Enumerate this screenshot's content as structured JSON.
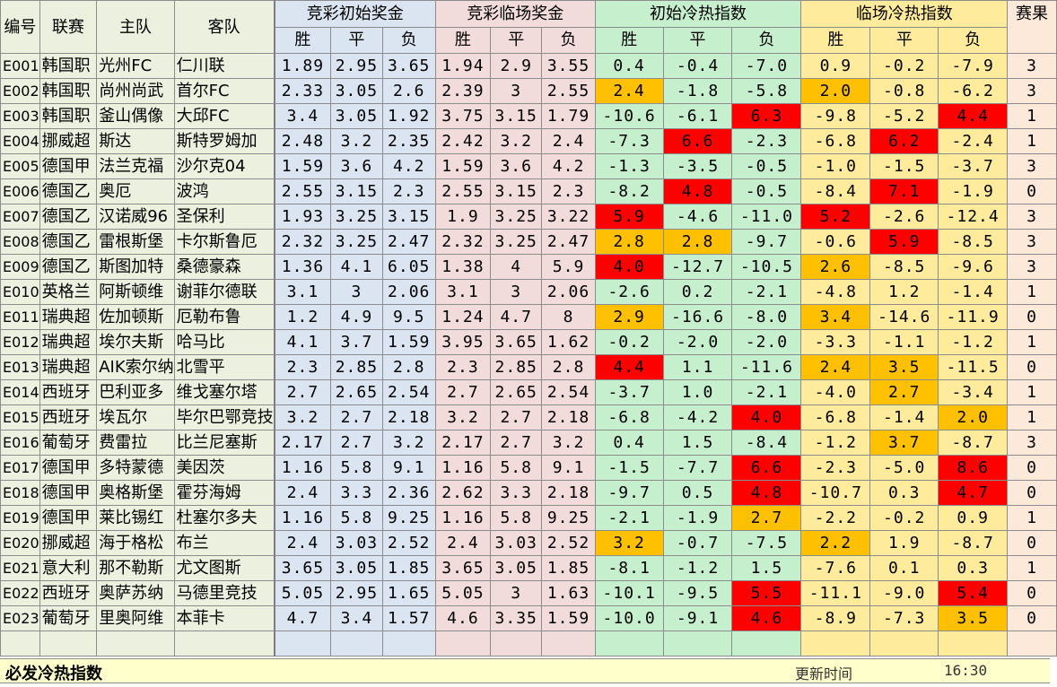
{
  "headers": {
    "id": "编号",
    "league": "联赛",
    "home": "主队",
    "away": "客队",
    "init_odds": "竞彩初始奖金",
    "live_odds": "竞彩临场奖金",
    "init_index": "初始冷热指数",
    "live_index": "临场冷热指数",
    "result": "赛果",
    "win": "胜",
    "draw": "平",
    "lose": "负"
  },
  "rows": [
    {
      "id": "E001",
      "league": "韩国职",
      "home": "光州FC",
      "away": "仁川联",
      "i1": "1.89",
      "i2": "2.95",
      "i3": "3.65",
      "l1": "1.94",
      "l2": "2.9",
      "l3": "3.55",
      "x1": "0.4",
      "x2": "-0.4",
      "x3": "-7.0",
      "y1": "0.9",
      "y2": "-0.2",
      "y3": "-7.9",
      "res": "3",
      "hx1": "",
      "hx2": "",
      "hx3": "",
      "hy1": "",
      "hy2": "",
      "hy3": ""
    },
    {
      "id": "E002",
      "league": "韩国职",
      "home": "尚州尚武",
      "away": "首尔FC",
      "i1": "2.33",
      "i2": "3.05",
      "i3": "2.6",
      "l1": "2.39",
      "l2": "3",
      "l3": "2.55",
      "x1": "2.4",
      "x2": "-1.8",
      "x3": "-5.8",
      "y1": "2.0",
      "y2": "-0.8",
      "y3": "-6.2",
      "res": "3",
      "hx1": "orange",
      "hx2": "",
      "hx3": "",
      "hy1": "orange",
      "hy2": "",
      "hy3": ""
    },
    {
      "id": "E003",
      "league": "韩国职",
      "home": "釜山偶像",
      "away": "大邱FC",
      "i1": "3.4",
      "i2": "3.05",
      "i3": "1.92",
      "l1": "3.75",
      "l2": "3.15",
      "l3": "1.79",
      "x1": "-10.6",
      "x2": "-6.1",
      "x3": "6.3",
      "y1": "-9.8",
      "y2": "-5.2",
      "y3": "4.4",
      "res": "1",
      "hx1": "",
      "hx2": "",
      "hx3": "red",
      "hy1": "",
      "hy2": "",
      "hy3": "red"
    },
    {
      "id": "E004",
      "league": "挪威超",
      "home": "斯达",
      "away": "斯特罗姆加",
      "i1": "2.48",
      "i2": "3.2",
      "i3": "2.35",
      "l1": "2.42",
      "l2": "3.2",
      "l3": "2.4",
      "x1": "-7.3",
      "x2": "6.6",
      "x3": "-2.3",
      "y1": "-6.8",
      "y2": "6.2",
      "y3": "-2.4",
      "res": "1",
      "hx1": "",
      "hx2": "red",
      "hx3": "",
      "hy1": "",
      "hy2": "red",
      "hy3": ""
    },
    {
      "id": "E005",
      "league": "德国甲",
      "home": "法兰克福",
      "away": "沙尔克04",
      "i1": "1.59",
      "i2": "3.6",
      "i3": "4.2",
      "l1": "1.59",
      "l2": "3.6",
      "l3": "4.2",
      "x1": "-1.3",
      "x2": "-3.5",
      "x3": "-0.5",
      "y1": "-1.0",
      "y2": "-1.5",
      "y3": "-3.7",
      "res": "3",
      "hx1": "",
      "hx2": "",
      "hx3": "",
      "hy1": "",
      "hy2": "",
      "hy3": ""
    },
    {
      "id": "E006",
      "league": "德国乙",
      "home": "奥厄",
      "away": "波鸿",
      "i1": "2.55",
      "i2": "3.15",
      "i3": "2.3",
      "l1": "2.55",
      "l2": "3.15",
      "l3": "2.3",
      "x1": "-8.2",
      "x2": "4.8",
      "x3": "-0.5",
      "y1": "-8.4",
      "y2": "7.1",
      "y3": "-1.9",
      "res": "0",
      "hx1": "",
      "hx2": "red",
      "hx3": "",
      "hy1": "",
      "hy2": "red",
      "hy3": ""
    },
    {
      "id": "E007",
      "league": "德国乙",
      "home": "汉诺威96",
      "away": "圣保利",
      "i1": "1.93",
      "i2": "3.25",
      "i3": "3.15",
      "l1": "1.9",
      "l2": "3.25",
      "l3": "3.22",
      "x1": "5.9",
      "x2": "-4.6",
      "x3": "-11.0",
      "y1": "5.2",
      "y2": "-2.6",
      "y3": "-12.4",
      "res": "3",
      "hx1": "red",
      "hx2": "",
      "hx3": "",
      "hy1": "red",
      "hy2": "",
      "hy3": ""
    },
    {
      "id": "E008",
      "league": "德国乙",
      "home": "雷根斯堡",
      "away": "卡尔斯鲁厄",
      "i1": "2.32",
      "i2": "3.25",
      "i3": "2.47",
      "l1": "2.32",
      "l2": "3.25",
      "l3": "2.47",
      "x1": "2.8",
      "x2": "2.8",
      "x3": "-9.7",
      "y1": "-0.6",
      "y2": "5.9",
      "y3": "-8.5",
      "res": "3",
      "hx1": "orange",
      "hx2": "orange",
      "hx3": "",
      "hy1": "",
      "hy2": "red",
      "hy3": ""
    },
    {
      "id": "E009",
      "league": "德国乙",
      "home": "斯图加特",
      "away": "桑德豪森",
      "i1": "1.36",
      "i2": "4.1",
      "i3": "6.05",
      "l1": "1.38",
      "l2": "4",
      "l3": "5.9",
      "x1": "4.0",
      "x2": "-12.7",
      "x3": "-10.5",
      "y1": "2.6",
      "y2": "-8.5",
      "y3": "-9.6",
      "res": "3",
      "hx1": "red",
      "hx2": "",
      "hx3": "",
      "hy1": "orange",
      "hy2": "",
      "hy3": ""
    },
    {
      "id": "E010",
      "league": "英格兰",
      "home": "阿斯顿维",
      "away": "谢菲尔德联",
      "i1": "3.1",
      "i2": "3",
      "i3": "2.06",
      "l1": "3.1",
      "l2": "3",
      "l3": "2.06",
      "x1": "-2.6",
      "x2": "0.2",
      "x3": "-2.1",
      "y1": "-4.8",
      "y2": "1.2",
      "y3": "-1.4",
      "res": "1",
      "hx1": "",
      "hx2": "",
      "hx3": "",
      "hy1": "",
      "hy2": "",
      "hy3": ""
    },
    {
      "id": "E011",
      "league": "瑞典超",
      "home": "佐加顿斯",
      "away": "厄勒布鲁",
      "i1": "1.2",
      "i2": "4.9",
      "i3": "9.5",
      "l1": "1.24",
      "l2": "4.7",
      "l3": "8",
      "x1": "2.9",
      "x2": "-16.6",
      "x3": "-8.0",
      "y1": "3.4",
      "y2": "-14.6",
      "y3": "-11.9",
      "res": "0",
      "hx1": "orange",
      "hx2": "",
      "hx3": "",
      "hy1": "orange",
      "hy2": "",
      "hy3": ""
    },
    {
      "id": "E012",
      "league": "瑞典超",
      "home": "埃尔夫斯",
      "away": "哈马比",
      "i1": "4.1",
      "i2": "3.7",
      "i3": "1.59",
      "l1": "3.95",
      "l2": "3.65",
      "l3": "1.62",
      "x1": "-0.2",
      "x2": "-2.0",
      "x3": "-2.0",
      "y1": "-3.3",
      "y2": "-1.1",
      "y3": "-1.2",
      "res": "1",
      "hx1": "",
      "hx2": "",
      "hx3": "",
      "hy1": "",
      "hy2": "",
      "hy3": ""
    },
    {
      "id": "E013",
      "league": "瑞典超",
      "home": "AIK索尔纳",
      "away": "北雪平",
      "i1": "2.3",
      "i2": "2.85",
      "i3": "2.8",
      "l1": "2.3",
      "l2": "2.85",
      "l3": "2.8",
      "x1": "4.4",
      "x2": "1.1",
      "x3": "-11.6",
      "y1": "2.4",
      "y2": "3.5",
      "y3": "-11.5",
      "res": "0",
      "hx1": "red",
      "hx2": "",
      "hx3": "",
      "hy1": "orange",
      "hy2": "orange",
      "hy3": ""
    },
    {
      "id": "E014",
      "league": "西班牙",
      "home": "巴利亚多",
      "away": "维戈塞尔塔",
      "i1": "2.7",
      "i2": "2.65",
      "i3": "2.54",
      "l1": "2.7",
      "l2": "2.65",
      "l3": "2.54",
      "x1": "-3.7",
      "x2": "1.0",
      "x3": "-2.1",
      "y1": "-4.0",
      "y2": "2.7",
      "y3": "-3.4",
      "res": "1",
      "hx1": "",
      "hx2": "",
      "hx3": "",
      "hy1": "",
      "hy2": "orange",
      "hy3": ""
    },
    {
      "id": "E015",
      "league": "西班牙",
      "home": "埃瓦尔",
      "away": "毕尔巴鄂竞技",
      "i1": "3.2",
      "i2": "2.7",
      "i3": "2.18",
      "l1": "3.2",
      "l2": "2.7",
      "l3": "2.18",
      "x1": "-6.8",
      "x2": "-4.2",
      "x3": "4.0",
      "y1": "-6.8",
      "y2": "-1.4",
      "y3": "2.0",
      "res": "1",
      "hx1": "",
      "hx2": "",
      "hx3": "red",
      "hy1": "",
      "hy2": "",
      "hy3": "orange"
    },
    {
      "id": "E016",
      "league": "葡萄牙",
      "home": "费雷拉",
      "away": "比兰尼塞斯",
      "i1": "2.17",
      "i2": "2.7",
      "i3": "3.2",
      "l1": "2.17",
      "l2": "2.7",
      "l3": "3.2",
      "x1": "0.4",
      "x2": "1.5",
      "x3": "-8.4",
      "y1": "-1.2",
      "y2": "3.7",
      "y3": "-8.7",
      "res": "3",
      "hx1": "",
      "hx2": "",
      "hx3": "",
      "hy1": "",
      "hy2": "orange",
      "hy3": ""
    },
    {
      "id": "E017",
      "league": "德国甲",
      "home": "多特蒙德",
      "away": "美因茨",
      "i1": "1.16",
      "i2": "5.8",
      "i3": "9.1",
      "l1": "1.16",
      "l2": "5.8",
      "l3": "9.1",
      "x1": "-1.5",
      "x2": "-7.7",
      "x3": "6.6",
      "y1": "-2.3",
      "y2": "-5.0",
      "y3": "8.6",
      "res": "0",
      "hx1": "",
      "hx2": "",
      "hx3": "red",
      "hy1": "",
      "hy2": "",
      "hy3": "red"
    },
    {
      "id": "E018",
      "league": "德国甲",
      "home": "奥格斯堡",
      "away": "霍芬海姆",
      "i1": "2.4",
      "i2": "3.3",
      "i3": "2.36",
      "l1": "2.62",
      "l2": "3.3",
      "l3": "2.18",
      "x1": "-9.7",
      "x2": "0.5",
      "x3": "4.8",
      "y1": "-10.7",
      "y2": "0.3",
      "y3": "4.7",
      "res": "0",
      "hx1": "",
      "hx2": "",
      "hx3": "red",
      "hy1": "",
      "hy2": "",
      "hy3": "red"
    },
    {
      "id": "E019",
      "league": "德国甲",
      "home": "莱比锡红",
      "away": "杜塞尔多夫",
      "i1": "1.16",
      "i2": "5.8",
      "i3": "9.25",
      "l1": "1.16",
      "l2": "5.8",
      "l3": "9.25",
      "x1": "-2.1",
      "x2": "-1.9",
      "x3": "2.7",
      "y1": "-2.2",
      "y2": "-0.2",
      "y3": "0.9",
      "res": "1",
      "hx1": "",
      "hx2": "",
      "hx3": "orange",
      "hy1": "",
      "hy2": "",
      "hy3": ""
    },
    {
      "id": "E020",
      "league": "挪威超",
      "home": "海于格松",
      "away": "布兰",
      "i1": "2.4",
      "i2": "3.03",
      "i3": "2.52",
      "l1": "2.4",
      "l2": "3.03",
      "l3": "2.52",
      "x1": "3.2",
      "x2": "-0.7",
      "x3": "-7.5",
      "y1": "2.2",
      "y2": "1.9",
      "y3": "-8.7",
      "res": "0",
      "hx1": "orange",
      "hx2": "",
      "hx3": "",
      "hy1": "orange",
      "hy2": "",
      "hy3": ""
    },
    {
      "id": "E021",
      "league": "意大利",
      "home": "那不勒斯",
      "away": "尤文图斯",
      "i1": "3.65",
      "i2": "3.05",
      "i3": "1.85",
      "l1": "3.65",
      "l2": "3.05",
      "l3": "1.85",
      "x1": "-8.1",
      "x2": "-1.2",
      "x3": "1.5",
      "y1": "-7.6",
      "y2": "0.1",
      "y3": "0.3",
      "res": "1",
      "hx1": "",
      "hx2": "",
      "hx3": "",
      "hy1": "",
      "hy2": "",
      "hy3": ""
    },
    {
      "id": "E022",
      "league": "西班牙",
      "home": "奥萨苏纳",
      "away": "马德里竞技",
      "i1": "5.05",
      "i2": "2.95",
      "i3": "1.65",
      "l1": "5.05",
      "l2": "3",
      "l3": "1.63",
      "x1": "-10.1",
      "x2": "-9.5",
      "x3": "5.5",
      "y1": "-11.1",
      "y2": "-9.0",
      "y3": "5.4",
      "res": "0",
      "hx1": "",
      "hx2": "",
      "hx3": "red",
      "hy1": "",
      "hy2": "",
      "hy3": "red"
    },
    {
      "id": "E023",
      "league": "葡萄牙",
      "home": "里奥阿维",
      "away": "本菲卡",
      "i1": "4.7",
      "i2": "3.4",
      "i3": "1.57",
      "l1": "4.6",
      "l2": "3.35",
      "l3": "1.59",
      "x1": "-10.0",
      "x2": "-9.1",
      "x3": "4.6",
      "y1": "-8.9",
      "y2": "-7.3",
      "y3": "3.5",
      "res": "0",
      "hx1": "",
      "hx2": "",
      "hx3": "red",
      "hy1": "",
      "hy2": "",
      "hy3": "orange"
    }
  ],
  "footer": {
    "title": "必发冷热指数",
    "update_label": "更新时间",
    "update_time": "16:30"
  },
  "colors": {
    "orange": "#ffc000",
    "red": "#ff0000",
    "index_init_bg": "#c6efce",
    "index_live_bg": "#ffeb9c",
    "odds_init_bg": "#dbe5f1",
    "odds_live_bg": "#f2dcdb"
  }
}
